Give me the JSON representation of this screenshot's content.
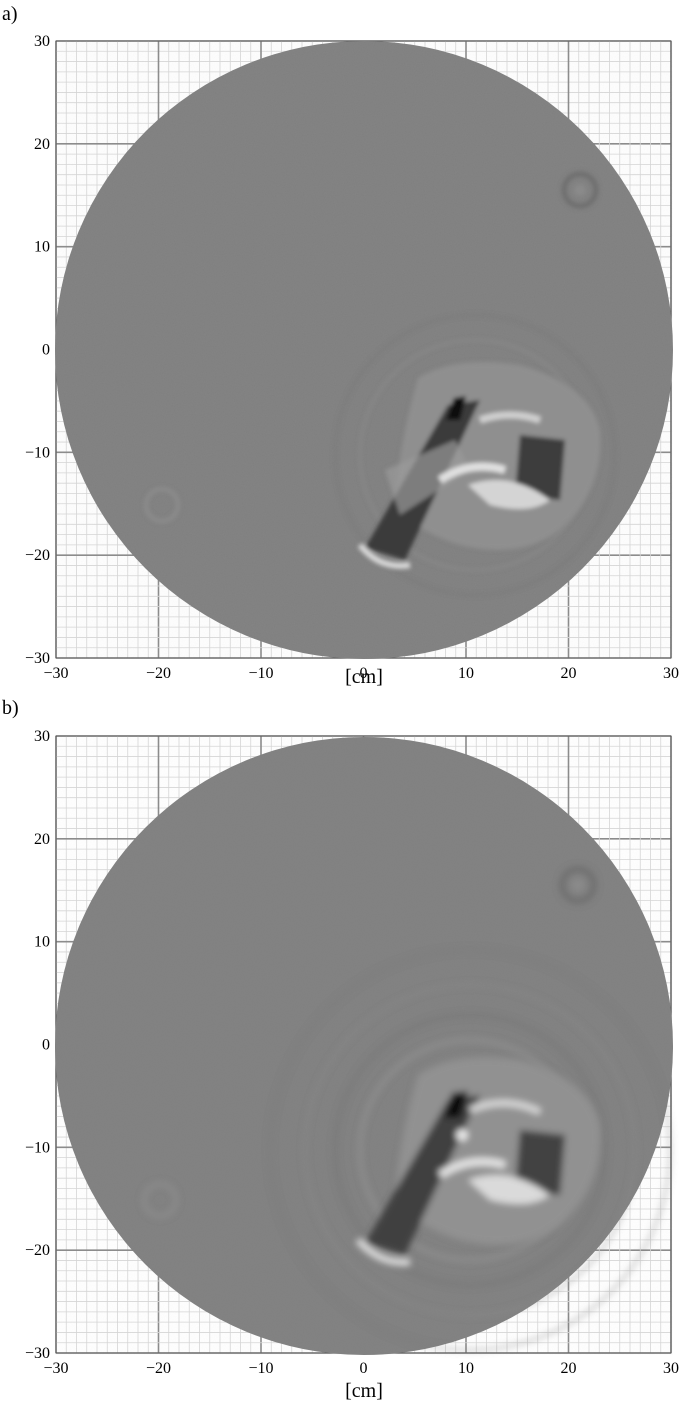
{
  "panels": [
    {
      "label": "a)",
      "xlabel": "[cm]",
      "x_ticks": [
        "−30",
        "−20",
        "−10",
        "0",
        "10",
        "20",
        "30"
      ],
      "y_ticks": [
        "30",
        "20",
        "10",
        "0",
        "−10",
        "−20",
        "−30"
      ],
      "xlim": [
        -30,
        30
      ],
      "ylim": [
        -30,
        30
      ]
    },
    {
      "label": "b)",
      "xlabel": "[cm]",
      "x_ticks": [
        "−30",
        "−20",
        "−10",
        "0",
        "10",
        "20",
        "30"
      ],
      "y_ticks": [
        "30",
        "20",
        "10",
        "0",
        "−10",
        "−20",
        "−30"
      ],
      "xlim": [
        -30,
        30
      ],
      "ylim": [
        -30,
        30
      ]
    }
  ],
  "colors": {
    "background_disk": "#7f7f7f",
    "grid_major": "#8a8a8a",
    "grid_minor": "#d6d6d6"
  }
}
